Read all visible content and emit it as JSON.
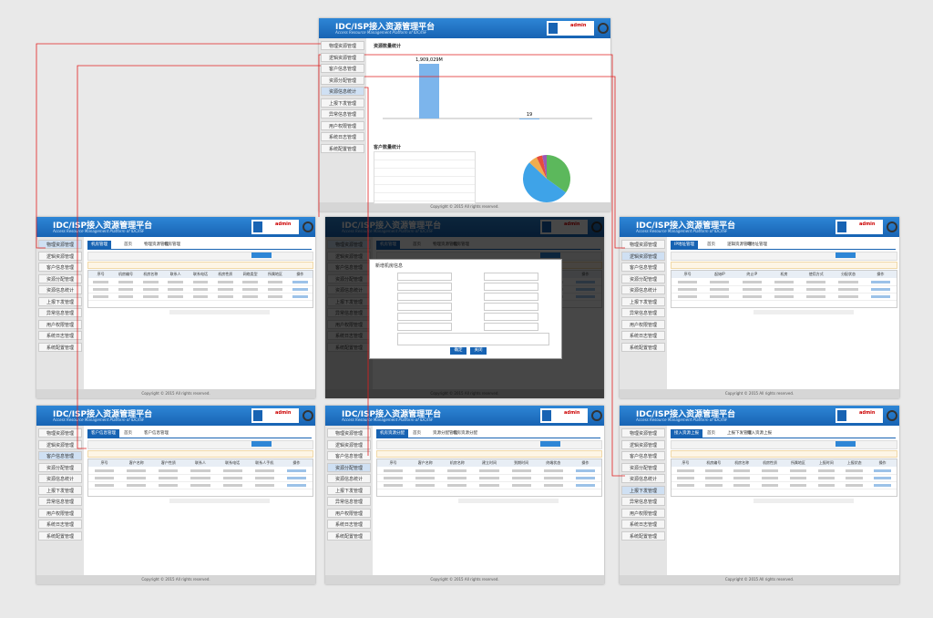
{
  "header": {
    "title": "IDC/ISP接入资源管理平台",
    "subtitle": "Access Resource Management Platform of IDC/ISP",
    "user": "admin"
  },
  "menu": [
    "物理资源管理",
    "逻辑资源管理",
    "客户信息管理",
    "资源分配管理",
    "资源信息统计",
    "上报下发管理",
    "异常信息管理",
    "用户权限管理",
    "系统日志管理",
    "系统配置管理"
  ],
  "footer": "Copyright © 2015 All rights reserved.",
  "dashboard": {
    "bar_title": "资源数量统计",
    "bar": {
      "values": [
        1909029,
        19
      ],
      "value_labels": [
        "1,909,029M",
        "19"
      ]
    },
    "pie_title": "客户数量统计",
    "pie": {
      "values": [
        35,
        52,
        6,
        4,
        3
      ],
      "colors": [
        "#5cb85c",
        "#3ea3e8",
        "#f0ad4e",
        "#e74c3c",
        "#9b59b6"
      ]
    }
  },
  "panels": [
    {
      "tab": "机房管理",
      "breadcrumb": [
        "首页",
        "物理资源管理",
        "机房管理"
      ],
      "columns": [
        "序号",
        "机房编号",
        "机房名称",
        "联系人",
        "联系电话",
        "机房性质",
        "网络类型",
        "所属地区",
        "操作"
      ]
    },
    {
      "tab": "机房管理",
      "breadcrumb": [
        "首页",
        "物理资源管理",
        "机房管理"
      ],
      "columns": [
        "序号",
        "机房编号",
        "机房名称",
        "联系人",
        "联系电话",
        "机房性质",
        "操作"
      ]
    },
    {
      "tab": "IP地址管理",
      "breadcrumb": [
        "首页",
        "逻辑资源管理",
        "IP地址管理"
      ],
      "columns": [
        "序号",
        "起始IP",
        "终止IP",
        "机房",
        "使用方式",
        "分配状态",
        "操作"
      ]
    },
    {
      "tab": "客户信息管理",
      "breadcrumb": [
        "首页",
        "客户信息管理"
      ],
      "columns": [
        "序号",
        "客户名称",
        "客户性质",
        "联系人",
        "联系电话",
        "联系人手机",
        "操作"
      ]
    },
    {
      "tab": "机房资源分配",
      "breadcrumb": [
        "首页",
        "资源分配管理",
        "机房资源分配"
      ],
      "columns": [
        "序号",
        "客户名称",
        "机房名称",
        "建立时间",
        "到期时间",
        "终端状态",
        "操作"
      ]
    },
    {
      "tab": "接入资源上报",
      "breadcrumb": [
        "首页",
        "上报下发管理",
        "接入资源上报"
      ],
      "columns": [
        "序号",
        "机房编号",
        "机房名称",
        "机房性质",
        "所属地区",
        "上报时间",
        "上报状态",
        "操作"
      ]
    }
  ],
  "modal": {
    "title": "新增机房信息",
    "buttons": [
      "确定",
      "关闭"
    ]
  }
}
